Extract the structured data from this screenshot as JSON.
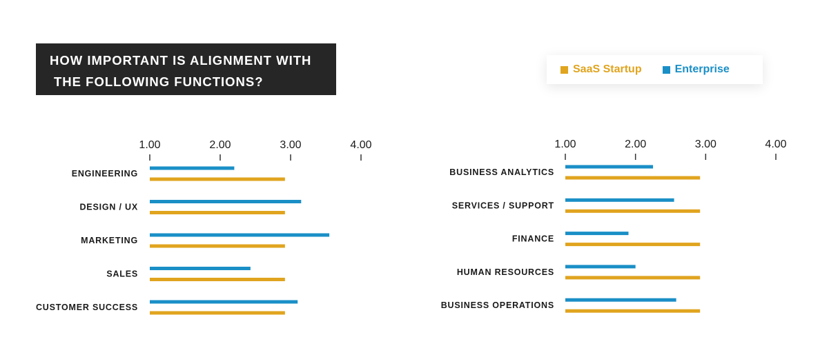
{
  "title": {
    "line1": "HOW IMPORTANT IS ALIGNMENT WITH",
    "line2": "THE FOLLOWING FUNCTIONS?"
  },
  "legend": {
    "items": [
      {
        "label": "SaaS Startup",
        "color": "#E0A41E"
      },
      {
        "label": "Enterprise",
        "color": "#1A8FC6"
      }
    ]
  },
  "colors": {
    "saas": "#E0A41E",
    "enterprise": "#1A8FC6"
  },
  "chart_data": [
    {
      "type": "bar",
      "orientation": "horizontal",
      "xlim": [
        1.0,
        4.0
      ],
      "ticks": [
        "1.00",
        "2.00",
        "3.00",
        "4.00"
      ],
      "tick_values": [
        1.0,
        2.0,
        3.0,
        4.0
      ],
      "categories": [
        "ENGINEERING",
        "DESIGN / UX",
        "MARKETING",
        "SALES",
        "CUSTOMER SUCCESS"
      ],
      "series": [
        {
          "name": "Enterprise",
          "values": [
            2.2,
            3.15,
            3.55,
            2.43,
            3.1
          ]
        },
        {
          "name": "SaaS Startup",
          "values": [
            2.92,
            2.92,
            2.92,
            2.92,
            2.92
          ]
        }
      ]
    },
    {
      "type": "bar",
      "orientation": "horizontal",
      "xlim": [
        1.0,
        4.0
      ],
      "ticks": [
        "1.00",
        "2.00",
        "3.00",
        "4.00"
      ],
      "tick_values": [
        1.0,
        2.0,
        3.0,
        4.0
      ],
      "categories": [
        "BUSINESS ANALYTICS",
        "SERVICES / SUPPORT",
        "FINANCE",
        "HUMAN RESOURCES",
        "BUSINESS OPERATIONS"
      ],
      "series": [
        {
          "name": "Enterprise",
          "values": [
            2.25,
            2.55,
            1.9,
            2.0,
            2.58
          ]
        },
        {
          "name": "SaaS Startup",
          "values": [
            2.92,
            2.92,
            2.92,
            2.92,
            2.92
          ]
        }
      ]
    }
  ]
}
